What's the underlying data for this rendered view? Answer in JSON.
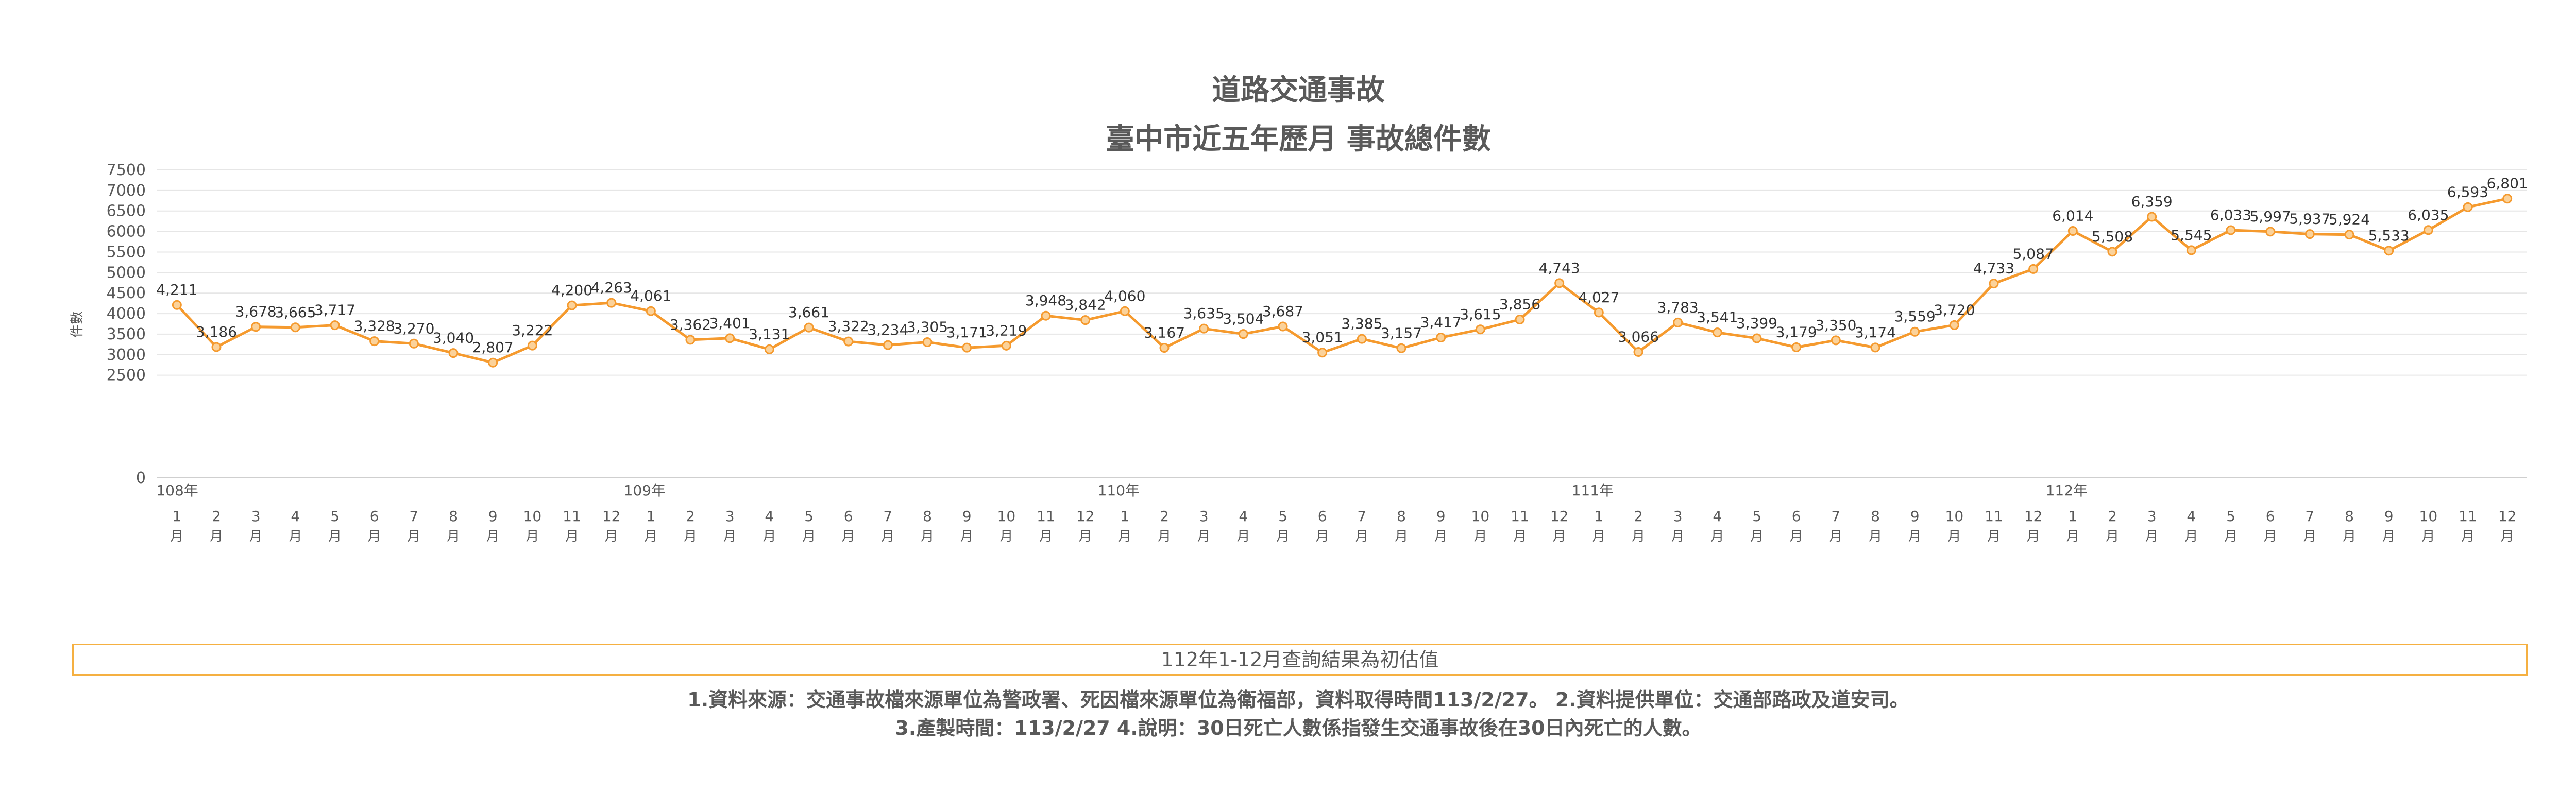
{
  "titles": {
    "line1": "道路交通事故",
    "line2": "臺中市近五年歷月 事故總件數"
  },
  "note": "112年1-12月查詢結果為初估值",
  "footnotes": {
    "line1": "1.資料來源：交通事故檔來源單位為警政署、死因檔來源單位為衛福部，資料取得時間113/2/27。 2.資料提供單位：交通部路政及道安司。",
    "line2": "3.產製時間：113/2/27 4.說明：30日死亡人數係指發生交通事故後在30日內死亡的人數。"
  },
  "colors": {
    "series": "#f59a2e",
    "grid": "#e6e6e6",
    "text": "#595959",
    "note_border": "#f5b041"
  },
  "chart_data": {
    "type": "line",
    "ylabel": "件數",
    "ylim": [
      0,
      7500
    ],
    "yticks": [
      0,
      2500,
      3000,
      3500,
      4000,
      4500,
      5000,
      5500,
      6000,
      6500,
      7000,
      7500
    ],
    "grid": true,
    "x_month_labels": [
      "1",
      "2",
      "3",
      "4",
      "5",
      "6",
      "7",
      "8",
      "9",
      "10",
      "11",
      "12"
    ],
    "x_month_suffix": "月",
    "years": [
      "108年",
      "109年",
      "110年",
      "111年",
      "112年"
    ],
    "series": [
      {
        "values": [
          4211,
          3186,
          3678,
          3665,
          3717,
          3328,
          3270,
          3040,
          2807,
          3222,
          4200,
          4263,
          4061,
          3362,
          3401,
          3131,
          3661,
          3322,
          3234,
          3305,
          3171,
          3219,
          3948,
          3842,
          4060,
          3167,
          3635,
          3504,
          3687,
          3051,
          3385,
          3157,
          3417,
          3615,
          3856,
          4743,
          4027,
          3066,
          3783,
          3541,
          3399,
          3179,
          3350,
          3174,
          3559,
          3720,
          4733,
          5087,
          6014,
          5508,
          6359,
          5545,
          6033,
          5997,
          5937,
          5924,
          5533,
          6035,
          6593,
          6801
        ],
        "labels": [
          "4,211",
          "3,186",
          "3,678",
          "3,665",
          "3,717",
          "3,328",
          "3,270",
          "3,040",
          "2,807",
          "3,222",
          "4,200",
          "4,263",
          "4,061",
          "3,362",
          "3,401",
          "3,131",
          "3,661",
          "3,322",
          "3,234",
          "3,305",
          "3,171",
          "3,219",
          "3,948",
          "3,842",
          "4,060",
          "3,167",
          "3,635",
          "3,504",
          "3,687",
          "3,051",
          "3,385",
          "3,157",
          "3,417",
          "3,615",
          "3,856",
          "4,743",
          "4,027",
          "3,066",
          "3,783",
          "3,541",
          "3,399",
          "3,179",
          "3,350",
          "3,174",
          "3,559",
          "3,720",
          "4,733",
          "5,087",
          "6,014",
          "5,508",
          "6,359",
          "5,545",
          "6,033",
          "5,997",
          "5,937",
          "5,924",
          "5,533",
          "6,035",
          "6,593",
          "6,801"
        ]
      }
    ]
  }
}
